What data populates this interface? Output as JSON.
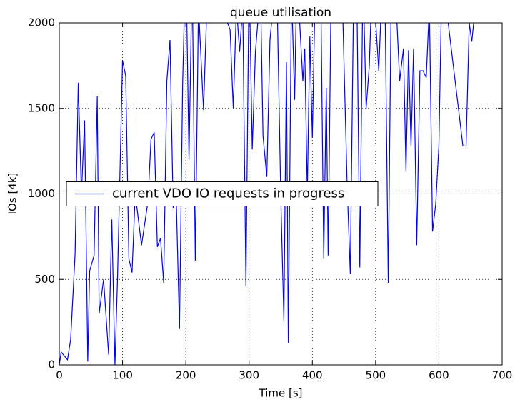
{
  "chart_data": {
    "type": "line",
    "title": "queue utilisation",
    "x_label": "Time [s]",
    "y_label": "IOs [4k]",
    "x": [
      0,
      3,
      13,
      18,
      25,
      30,
      35,
      40,
      45,
      48,
      55,
      60,
      63,
      70,
      78,
      83,
      88,
      92,
      100,
      105,
      110,
      115,
      120,
      130,
      140,
      145,
      150,
      155,
      160,
      165,
      170,
      175,
      180,
      185,
      190,
      195,
      200,
      205,
      210,
      215,
      220,
      228,
      235,
      270,
      275,
      280,
      285,
      290,
      295,
      300,
      305,
      310,
      318,
      322,
      328,
      333,
      338,
      345,
      350,
      355,
      359,
      362,
      367,
      372,
      375,
      380,
      385,
      388,
      392,
      396,
      400,
      405,
      413,
      418,
      422,
      425,
      430,
      447,
      455,
      460,
      465,
      470,
      475,
      480,
      485,
      490,
      495,
      505,
      510,
      515,
      520,
      525,
      530,
      538,
      544,
      548,
      552,
      556,
      560,
      565,
      570,
      575,
      580,
      585,
      590,
      595,
      600,
      605,
      638,
      643,
      648,
      652,
      655
    ],
    "series": [
      {
        "name": "current VDO IO requests in progress",
        "color": "#0000ff",
        "values": [
          0,
          75,
          30,
          150,
          650,
          1650,
          1000,
          1430,
          20,
          550,
          640,
          1570,
          300,
          500,
          60,
          850,
          0,
          500,
          1780,
          1690,
          620,
          540,
          1000,
          700,
          950,
          1320,
          1360,
          690,
          740,
          480,
          1660,
          1900,
          920,
          950,
          210,
          1650,
          2400,
          1200,
          2300,
          610,
          2100,
          1490,
          2300,
          1960,
          1500,
          2100,
          1830,
          2100,
          460,
          2300,
          1260,
          1830,
          2200,
          1340,
          1100,
          1900,
          2100,
          2000,
          1000,
          260,
          1770,
          130,
          2200,
          1550,
          2200,
          2000,
          1660,
          1850,
          1000,
          1920,
          1330,
          2300,
          2300,
          620,
          1620,
          640,
          2300,
          2200,
          1050,
          530,
          2100,
          2300,
          570,
          2300,
          1500,
          1750,
          2300,
          1720,
          2200,
          2100,
          480,
          2300,
          2300,
          1660,
          1850,
          1130,
          1840,
          1280,
          1850,
          700,
          1720,
          1720,
          1680,
          2100,
          780,
          940,
          1280,
          2300,
          1280,
          1280,
          2000,
          1890,
          2000
        ]
      }
    ],
    "xlim": [
      0,
      700
    ],
    "ylim": [
      0,
      2000
    ],
    "xticks": [
      0,
      100,
      200,
      300,
      400,
      500,
      600,
      700
    ],
    "yticks": [
      0,
      500,
      1000,
      1500,
      2000
    ],
    "grid": true,
    "legend_loc": "center left"
  }
}
